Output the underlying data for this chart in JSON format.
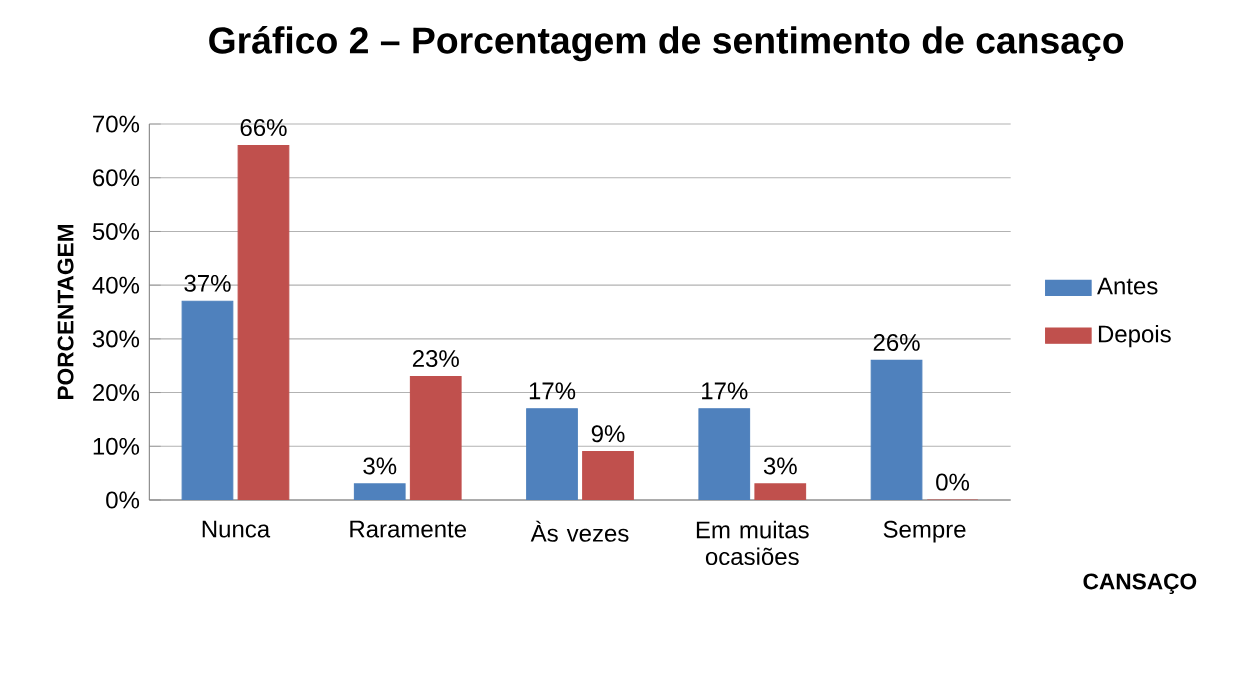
{
  "chart_data": {
    "type": "bar",
    "title": "Gráfico 2 –  Porcentagem de sentimento de cansaço",
    "xlabel": "CANSAÇO",
    "ylabel": "PORCENTAGEM",
    "categories": [
      "Nunca",
      "Raramente",
      "Às vezes",
      "Em muitas ocasiões",
      "Sempre"
    ],
    "series": [
      {
        "name": "Antes",
        "color": "#4f81bd",
        "values": [
          37,
          3,
          17,
          17,
          26
        ],
        "value_labels": [
          "37%",
          "3%",
          "17%",
          "17%",
          "26%"
        ]
      },
      {
        "name": "Depois",
        "color": "#c0504d",
        "values": [
          66,
          23,
          9,
          3,
          0
        ],
        "value_labels": [
          "66%",
          "23%",
          "9%",
          "3%",
          "0%"
        ]
      }
    ],
    "ylim": [
      0,
      70
    ],
    "yticks": [
      {
        "value": 0,
        "label": "0%"
      },
      {
        "value": 10,
        "label": "10%"
      },
      {
        "value": 20,
        "label": "20%"
      },
      {
        "value": 30,
        "label": "30%"
      },
      {
        "value": 40,
        "label": "40%"
      },
      {
        "value": 50,
        "label": "50%"
      },
      {
        "value": 60,
        "label": "60%"
      },
      {
        "value": 70,
        "label": "70%"
      }
    ],
    "grid": "y",
    "legend": "right"
  }
}
